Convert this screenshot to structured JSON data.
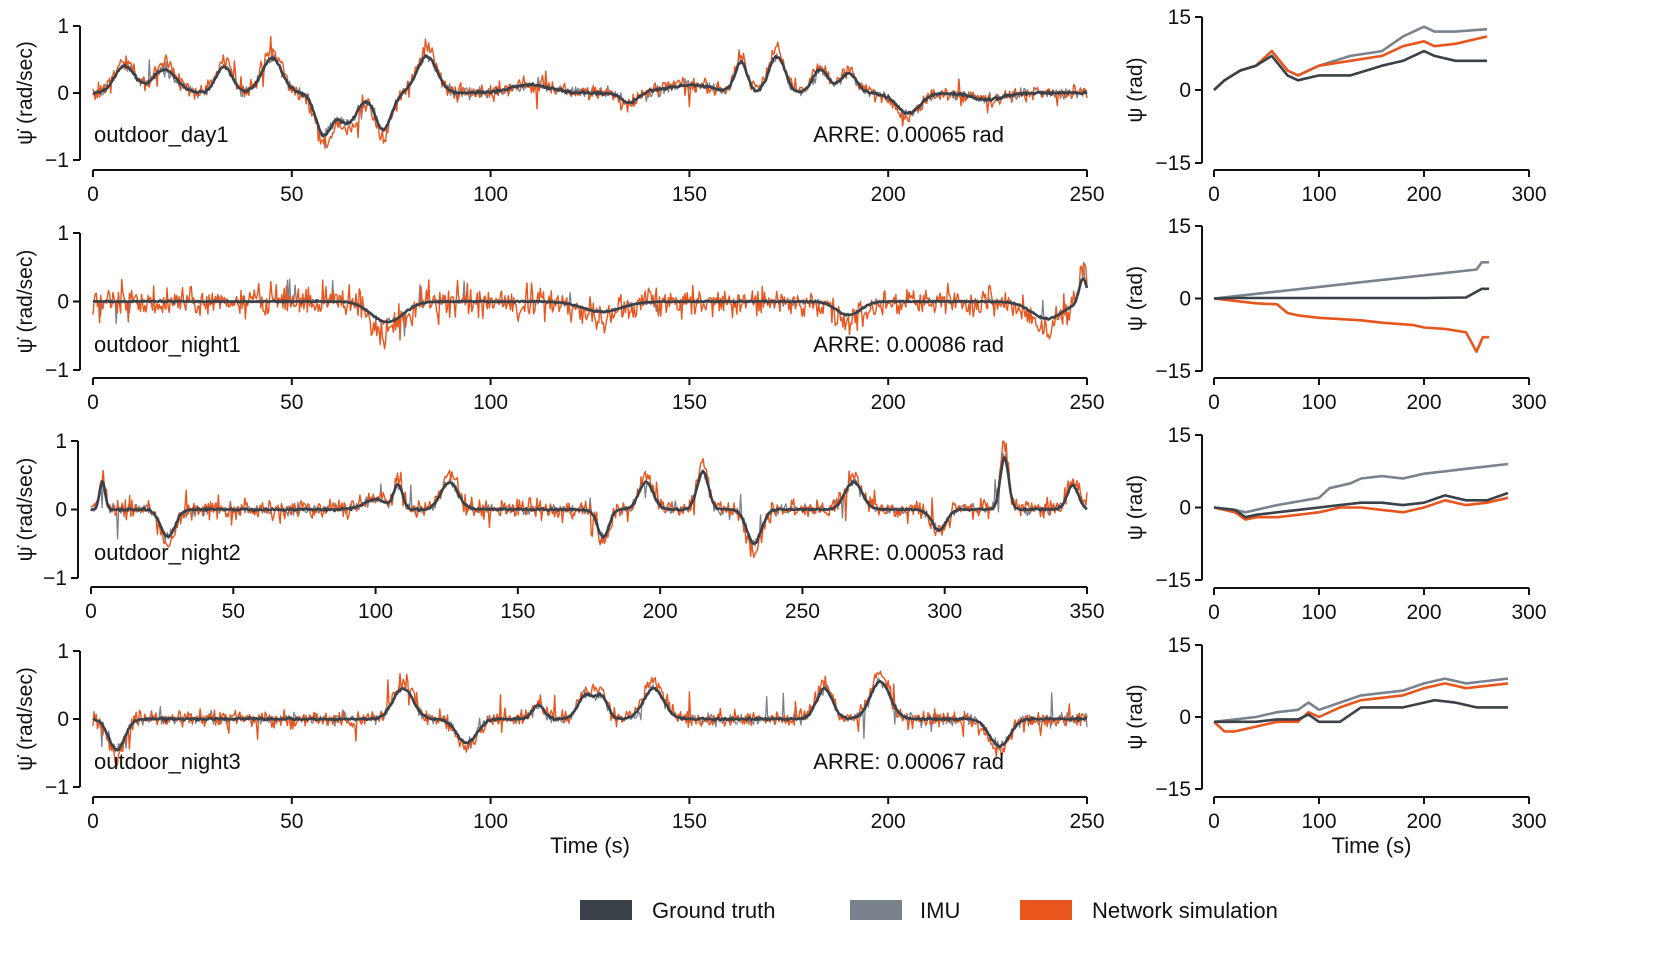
{
  "colors": {
    "ground_truth": "#3b4148",
    "imu": "#7a838d",
    "network": "#e8561e",
    "axis": "#111111"
  },
  "legend": [
    {
      "key": "ground_truth",
      "label": "Ground truth"
    },
    {
      "key": "imu",
      "label": "IMU"
    },
    {
      "key": "network",
      "label": "Network simulation"
    }
  ],
  "chart_data": [
    {
      "type": "line",
      "panel": "rate",
      "sequence": "outdoor_day1",
      "annotation": "ARRE: 0.00065 rad",
      "ylabel": "ψ̇ (rad/sec)",
      "xlabel": "",
      "xlim": [
        0,
        250
      ],
      "ylim": [
        -1,
        1
      ],
      "xticks": [
        "0",
        "50",
        "100",
        "150",
        "200",
        "250"
      ],
      "yticks": [
        "−1",
        "0",
        "1"
      ],
      "seed": 11,
      "events": [
        [
          8,
          0.4,
          2.5
        ],
        [
          18,
          0.35,
          3
        ],
        [
          33,
          0.4,
          2
        ],
        [
          45,
          0.52,
          2.5
        ],
        [
          58,
          -0.6,
          2
        ],
        [
          64,
          -0.45,
          2.5
        ],
        [
          73,
          -0.55,
          2
        ],
        [
          84,
          0.55,
          2.5
        ],
        [
          110,
          0.12,
          5
        ],
        [
          135,
          -0.15,
          2
        ],
        [
          150,
          0.12,
          6
        ],
        [
          163,
          0.45,
          1.5
        ],
        [
          172,
          0.55,
          2
        ],
        [
          183,
          0.35,
          2
        ],
        [
          190,
          0.3,
          2
        ],
        [
          205,
          -0.3,
          3
        ],
        [
          225,
          -0.1,
          4
        ]
      ],
      "noise": {
        "gt": 0.01,
        "imu": 0.04,
        "net": 0.06
      },
      "spikes": 0.02,
      "net_scale": 1.2,
      "series": [
        {
          "name": "Ground truth"
        },
        {
          "name": "IMU"
        },
        {
          "name": "Network simulation"
        }
      ]
    },
    {
      "type": "line",
      "panel": "heading",
      "sequence": "outdoor_day1",
      "ylabel": "ψ (rad)",
      "xlabel": "",
      "xlim": [
        0,
        300
      ],
      "ylim": [
        -15,
        15
      ],
      "xticks": [
        "0",
        "100",
        "200",
        "300"
      ],
      "yticks": [
        "−15",
        "0",
        "15"
      ],
      "series": [
        {
          "name": "Ground truth",
          "x": [
            0,
            10,
            25,
            40,
            55,
            70,
            80,
            100,
            130,
            160,
            180,
            200,
            210,
            230,
            260
          ],
          "y": [
            0,
            2,
            4,
            5,
            7,
            3,
            2,
            3,
            3,
            5,
            6,
            8,
            7,
            6,
            6
          ]
        },
        {
          "name": "IMU",
          "x": [
            0,
            10,
            25,
            40,
            55,
            70,
            80,
            100,
            130,
            160,
            180,
            200,
            210,
            230,
            260
          ],
          "y": [
            0,
            2,
            4,
            5,
            8,
            4,
            3,
            5,
            7,
            8,
            11,
            13,
            12,
            12,
            12.5
          ]
        },
        {
          "name": "Network simulation",
          "x": [
            0,
            10,
            25,
            40,
            55,
            70,
            80,
            100,
            130,
            160,
            180,
            200,
            210,
            230,
            260
          ],
          "y": [
            0,
            2,
            4,
            5,
            8,
            4,
            3,
            5,
            6,
            7,
            9,
            10,
            9,
            9.5,
            11
          ]
        }
      ]
    },
    {
      "type": "line",
      "panel": "rate",
      "sequence": "outdoor_night1",
      "annotation": "ARRE: 0.00086 rad",
      "ylabel": "ψ̇ (rad/sec)",
      "xlabel": "",
      "xlim": [
        0,
        250
      ],
      "ylim": [
        -1,
        1
      ],
      "xticks": [
        "0",
        "50",
        "100",
        "150",
        "200",
        "250"
      ],
      "yticks": [
        "−1",
        "0",
        "1"
      ],
      "seed": 23,
      "events": [
        [
          74,
          -0.3,
          4
        ],
        [
          128,
          -0.15,
          5
        ],
        [
          190,
          -0.2,
          3
        ],
        [
          240,
          -0.25,
          4
        ],
        [
          249,
          0.35,
          1
        ]
      ],
      "noise": {
        "gt": 0.005,
        "imu": 0.02,
        "net": 0.11
      },
      "spikes": 0.02,
      "net_scale": 1.5,
      "series": [
        {
          "name": "Ground truth"
        },
        {
          "name": "IMU"
        },
        {
          "name": "Network simulation"
        }
      ]
    },
    {
      "type": "line",
      "panel": "heading",
      "sequence": "outdoor_night1",
      "ylabel": "ψ (rad)",
      "xlabel": "",
      "xlim": [
        0,
        300
      ],
      "ylim": [
        -15,
        15
      ],
      "xticks": [
        "0",
        "100",
        "200",
        "300"
      ],
      "yticks": [
        "−15",
        "0",
        "15"
      ],
      "series": [
        {
          "name": "Ground truth",
          "x": [
            0,
            20,
            60,
            100,
            150,
            200,
            240,
            255,
            262
          ],
          "y": [
            0,
            0.1,
            0.1,
            0.1,
            0.1,
            0.1,
            0.2,
            2,
            2
          ]
        },
        {
          "name": "IMU",
          "x": [
            0,
            50,
            100,
            150,
            200,
            250,
            255,
            262
          ],
          "y": [
            0,
            1.2,
            2.4,
            3.6,
            4.8,
            6,
            7.5,
            7.5
          ]
        },
        {
          "name": "Network simulation",
          "x": [
            0,
            20,
            40,
            60,
            70,
            80,
            100,
            140,
            160,
            190,
            200,
            220,
            240,
            250,
            256,
            262
          ],
          "y": [
            0,
            -0.5,
            -1,
            -1.2,
            -3,
            -3.5,
            -4,
            -4.5,
            -5,
            -5.5,
            -6,
            -6.3,
            -7,
            -11,
            -8,
            -8
          ]
        }
      ]
    },
    {
      "type": "line",
      "panel": "rate",
      "sequence": "outdoor_night2",
      "annotation": "ARRE: 0.00053 rad",
      "ylabel": "ψ̇ (rad/sec)",
      "xlabel": "",
      "xlim": [
        0,
        350
      ],
      "ylim": [
        -1,
        1
      ],
      "xticks": [
        "0",
        "50",
        "100",
        "150",
        "200",
        "250",
        "300",
        "350"
      ],
      "yticks": [
        "−1",
        "0",
        "1"
      ],
      "seed": 37,
      "events": [
        [
          4,
          0.4,
          1
        ],
        [
          27,
          -0.4,
          2.5
        ],
        [
          100,
          0.15,
          4
        ],
        [
          108,
          0.35,
          1.5
        ],
        [
          126,
          0.4,
          3
        ],
        [
          180,
          -0.4,
          2
        ],
        [
          195,
          0.4,
          2.5
        ],
        [
          215,
          0.55,
          2
        ],
        [
          233,
          -0.5,
          2.5
        ],
        [
          268,
          0.4,
          3
        ],
        [
          298,
          -0.3,
          2.5
        ],
        [
          321,
          0.75,
          1.5
        ],
        [
          345,
          0.35,
          2
        ]
      ],
      "noise": {
        "gt": 0.008,
        "imu": 0.04,
        "net": 0.07
      },
      "spikes": 0.025,
      "net_scale": 1.25,
      "series": [
        {
          "name": "Ground truth"
        },
        {
          "name": "IMU"
        },
        {
          "name": "Network simulation"
        }
      ]
    },
    {
      "type": "line",
      "panel": "heading",
      "sequence": "outdoor_night2",
      "ylabel": "ψ (rad)",
      "xlabel": "",
      "xlim": [
        0,
        300
      ],
      "ylim": [
        -15,
        15
      ],
      "xticks": [
        "0",
        "100",
        "200",
        "300"
      ],
      "yticks": [
        "−15",
        "0",
        "15"
      ],
      "series": [
        {
          "name": "Ground truth",
          "x": [
            0,
            20,
            30,
            40,
            60,
            80,
            100,
            120,
            140,
            160,
            180,
            200,
            220,
            240,
            260,
            280
          ],
          "y": [
            0,
            -0.5,
            -2,
            -1.5,
            -1,
            -0.5,
            0,
            0.5,
            1,
            1,
            0.5,
            1,
            2.5,
            1.5,
            1.5,
            3
          ]
        },
        {
          "name": "IMU",
          "x": [
            0,
            20,
            30,
            60,
            100,
            110,
            130,
            140,
            160,
            180,
            200,
            220,
            240,
            260,
            280
          ],
          "y": [
            0,
            -0.5,
            -1,
            0.5,
            2,
            4,
            5,
            6,
            6.5,
            6,
            7,
            7.5,
            8,
            8.5,
            9
          ]
        },
        {
          "name": "Network simulation",
          "x": [
            0,
            20,
            30,
            40,
            60,
            80,
            100,
            120,
            140,
            160,
            180,
            200,
            220,
            240,
            260,
            280
          ],
          "y": [
            0,
            -1,
            -2.5,
            -2,
            -2,
            -1.5,
            -1,
            0,
            0,
            -0.5,
            -1,
            0,
            1.5,
            0.5,
            1,
            2
          ]
        }
      ]
    },
    {
      "type": "line",
      "panel": "rate",
      "sequence": "outdoor_night3",
      "annotation": "ARRE: 0.00067 rad",
      "ylabel": "ψ̇ (rad/sec)",
      "xlabel": "Time (s)",
      "xlim": [
        0,
        250
      ],
      "ylim": [
        -1,
        1
      ],
      "xticks": [
        "0",
        "50",
        "100",
        "150",
        "200",
        "250"
      ],
      "yticks": [
        "−1",
        "0",
        "1"
      ],
      "seed": 51,
      "events": [
        [
          6,
          -0.45,
          2
        ],
        [
          78,
          0.45,
          2.5
        ],
        [
          94,
          -0.35,
          2.5
        ],
        [
          112,
          0.2,
          1.5
        ],
        [
          124,
          0.35,
          2
        ],
        [
          128,
          0.3,
          1.5
        ],
        [
          141,
          0.45,
          2.5
        ],
        [
          184,
          0.45,
          2
        ],
        [
          198,
          0.55,
          2.5
        ],
        [
          228,
          -0.4,
          2.5
        ]
      ],
      "noise": {
        "gt": 0.008,
        "imu": 0.04,
        "net": 0.06
      },
      "spikes": 0.02,
      "net_scale": 1.2,
      "series": [
        {
          "name": "Ground truth"
        },
        {
          "name": "IMU"
        },
        {
          "name": "Network simulation"
        }
      ]
    },
    {
      "type": "line",
      "panel": "heading",
      "sequence": "outdoor_night3",
      "ylabel": "ψ (rad)",
      "xlabel": "Time (s)",
      "xlim": [
        0,
        300
      ],
      "ylim": [
        -15,
        15
      ],
      "xticks": [
        "0",
        "100",
        "200",
        "300"
      ],
      "yticks": [
        "−15",
        "0",
        "15"
      ],
      "series": [
        {
          "name": "Ground truth",
          "x": [
            0,
            20,
            40,
            60,
            80,
            90,
            100,
            120,
            140,
            160,
            180,
            200,
            210,
            230,
            250,
            280
          ],
          "y": [
            -1,
            -1,
            -1,
            -0.5,
            -0.5,
            0.5,
            -1,
            -1,
            2,
            2,
            2,
            3,
            3.5,
            3,
            2,
            2
          ]
        },
        {
          "name": "IMU",
          "x": [
            0,
            20,
            40,
            60,
            80,
            90,
            100,
            120,
            140,
            160,
            180,
            200,
            220,
            240,
            260,
            280
          ],
          "y": [
            -1,
            -0.5,
            0,
            1,
            1.5,
            3,
            1.5,
            3,
            4.5,
            5,
            5.5,
            7,
            8,
            7,
            7.5,
            8
          ]
        },
        {
          "name": "Network simulation",
          "x": [
            0,
            10,
            20,
            40,
            60,
            80,
            90,
            100,
            120,
            140,
            160,
            180,
            200,
            220,
            240,
            260,
            280
          ],
          "y": [
            -1,
            -3,
            -3,
            -2,
            -1,
            -1,
            1,
            0,
            2,
            3.5,
            4,
            4.5,
            6,
            7,
            6,
            6.5,
            7
          ]
        }
      ]
    }
  ]
}
